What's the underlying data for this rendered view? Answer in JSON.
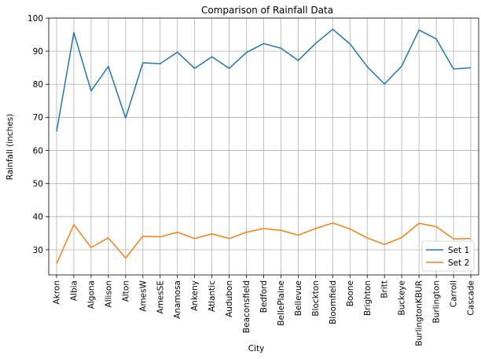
{
  "chart_data": {
    "type": "line",
    "title": "Comparison of Rainfall Data",
    "xlabel": "City",
    "ylabel": "Rainfall (inches)",
    "ylim": [
      22.4,
      100
    ],
    "yticks": [
      30,
      40,
      50,
      60,
      70,
      80,
      90,
      100
    ],
    "grid": true,
    "legend_position": "bottom-right",
    "categories": [
      "Akron",
      "Albia",
      "Algona",
      "Allison",
      "Alton",
      "AmesW",
      "AmesSE",
      "Anamosa",
      "Ankeny",
      "Atlantic",
      "Audubon",
      "Beaconsfield",
      "Bedford",
      "BellePlaine",
      "Bellevue",
      "Blockton",
      "Bloomfield",
      "Boone",
      "Brighton",
      "Britt",
      "Buckeye",
      "BurlingtonKBUR",
      "Burlington",
      "Carroll",
      "Cascade"
    ],
    "series": [
      {
        "name": "Set 1",
        "color": "#1f77b4",
        "values": [
          65.7,
          95.6,
          78.0,
          85.4,
          69.8,
          86.5,
          86.2,
          89.7,
          84.8,
          88.3,
          84.8,
          89.6,
          92.3,
          90.9,
          87.2,
          92.3,
          96.6,
          92.2,
          85.3,
          80.1,
          85.5,
          96.4,
          93.7,
          84.6,
          85.0
        ]
      },
      {
        "name": "Set 2",
        "color": "#ff7f0e",
        "values": [
          25.8,
          37.6,
          30.7,
          33.6,
          27.5,
          34.1,
          33.9,
          35.3,
          33.4,
          34.8,
          33.4,
          35.3,
          36.4,
          35.9,
          34.4,
          36.4,
          38.1,
          36.3,
          33.6,
          31.6,
          33.7,
          38.0,
          37.0,
          33.3,
          33.4
        ]
      }
    ]
  }
}
